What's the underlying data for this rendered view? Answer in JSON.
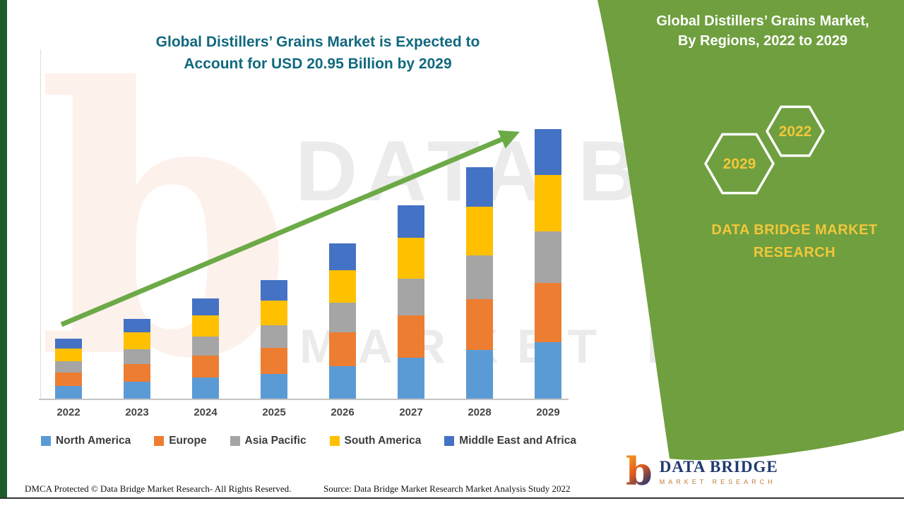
{
  "colors": {
    "green_panel": "#6f9f3f",
    "left_stripe": "#1d5b2d",
    "title_teal": "#10697f",
    "accent_yellow": "#f2c73a",
    "arrow_green": "#6caa47"
  },
  "header": {
    "title_line1": "Global Distillers’ Grains Market is Expected to",
    "title_line2": "Account for USD 20.95 Billion by 2029"
  },
  "panel": {
    "title_line1": "Global Distillers’ Grains Market,",
    "title_line2": "By Regions, 2022 to 2029",
    "hexagon_left": "2029",
    "hexagon_right": "2022",
    "brand_line1": "DATA BRIDGE MARKET",
    "brand_line2": "RESEARCH"
  },
  "watermark": {
    "glyph": "b",
    "line1": "DATA BRIDGE",
    "line2": "MARKET RESEARCH"
  },
  "logo": {
    "glyph": "b",
    "title": "DATA BRIDGE",
    "tagline": "MARKET RESEARCH"
  },
  "footer": {
    "dmca": "DMCA Protected © Data Bridge Market Research- All Rights Reserved.",
    "source": "Source: Data Bridge Market Research Market Analysis Study 2022"
  },
  "chart_data": {
    "type": "bar",
    "stacked": true,
    "title": "Global Distillers’ Grains Market is Expected to Account for USD 20.95 Billion by 2029",
    "unit": "USD Billion",
    "categories": [
      "2022",
      "2023",
      "2024",
      "2025",
      "2026",
      "2027",
      "2028",
      "2029"
    ],
    "series": [
      {
        "name": "North America",
        "color": "#5b9bd5",
        "values": [
          0.98,
          1.3,
          1.64,
          1.93,
          2.53,
          3.16,
          3.78,
          4.4
        ]
      },
      {
        "name": "Europe",
        "color": "#ed7d31",
        "values": [
          1.03,
          1.36,
          1.71,
          2.03,
          2.65,
          3.31,
          3.96,
          4.61
        ]
      },
      {
        "name": "Asia Pacific",
        "color": "#a5a5a5",
        "values": [
          0.89,
          1.18,
          1.48,
          1.75,
          2.29,
          2.86,
          3.42,
          3.98
        ]
      },
      {
        "name": "South America",
        "color": "#ffc000",
        "values": [
          0.98,
          1.3,
          1.64,
          1.93,
          2.53,
          3.16,
          3.78,
          4.4
        ]
      },
      {
        "name": "Middle East and Africa",
        "color": "#4472c4",
        "values": [
          0.79,
          1.05,
          1.32,
          1.57,
          2.05,
          2.55,
          3.06,
          3.56
        ]
      }
    ],
    "estimated_totals": [
      4.67,
      6.19,
      7.79,
      9.21,
      12.05,
      15.04,
      18.0,
      20.95
    ],
    "highlight_value_2029": "USD 20.95 Billion",
    "ylim": [
      0,
      21
    ],
    "gridlines": false,
    "legend_position": "bottom",
    "trend_arrow": true
  }
}
